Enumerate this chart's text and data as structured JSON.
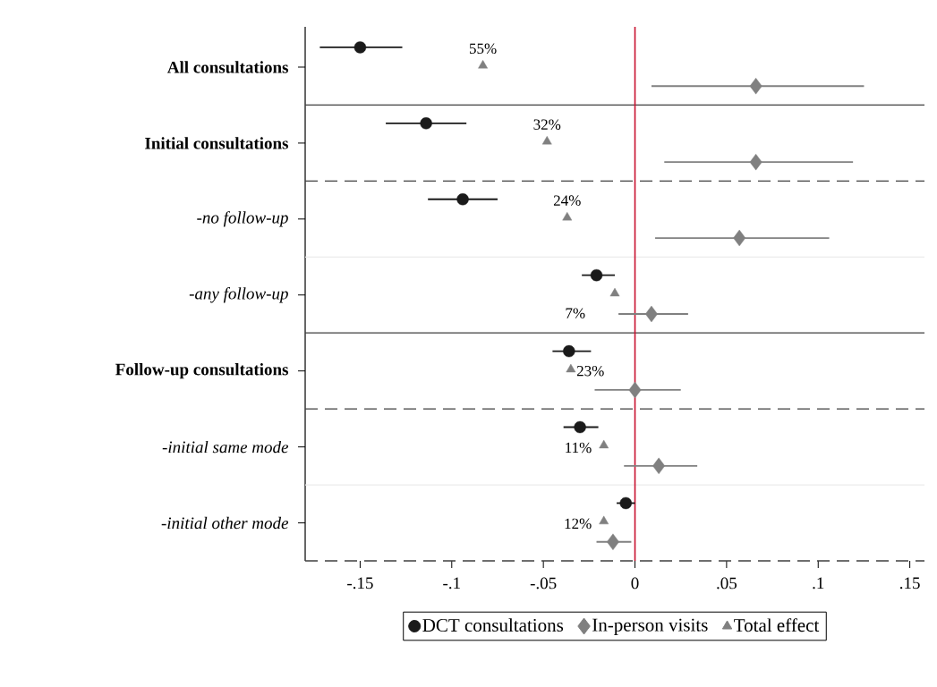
{
  "chart_data": {
    "type": "scatter",
    "orientation": "horizontal",
    "categories": [
      "All consultations",
      "Initial consultations",
      "-no follow-up",
      "-any follow-up",
      "Follow-up consultations",
      "-initial same mode",
      "-initial other mode"
    ],
    "series": [
      {
        "name": "DCT consultations",
        "color": "#1a1a1a",
        "marker": "circle",
        "values": [
          -0.15,
          -0.114,
          -0.094,
          -0.021,
          -0.036,
          -0.03,
          -0.005
        ],
        "errors": [
          [
            -0.172,
            -0.127
          ],
          [
            -0.136,
            -0.092
          ],
          [
            -0.113,
            -0.075
          ],
          [
            -0.029,
            -0.011
          ],
          [
            -0.045,
            -0.024
          ],
          [
            -0.039,
            -0.02
          ],
          [
            -0.01,
            0.0
          ]
        ]
      },
      {
        "name": "In-person visits",
        "color": "#808080",
        "marker": "diamond",
        "values": [
          0.066,
          0.066,
          0.057,
          0.009,
          0.0,
          0.013,
          -0.012
        ],
        "errors": [
          [
            0.009,
            0.125
          ],
          [
            0.016,
            0.119
          ],
          [
            0.011,
            0.106
          ],
          [
            -0.009,
            0.029
          ],
          [
            -0.022,
            0.025
          ],
          [
            -0.006,
            0.034
          ],
          [
            -0.021,
            -0.002
          ]
        ]
      },
      {
        "name": "Total effect",
        "color": "#808080",
        "marker": "triangle",
        "values": [
          -0.083,
          -0.048,
          -0.037,
          -0.011,
          -0.035,
          -0.017,
          -0.017
        ]
      }
    ],
    "annotations": [
      {
        "text": "55%",
        "x": -0.083,
        "y": "All consultations"
      },
      {
        "text": "32%",
        "x": -0.048,
        "y": "Initial consultations"
      },
      {
        "text": "24%",
        "x": -0.037,
        "y": "-no follow-up"
      },
      {
        "text": "7%",
        "x": -0.011,
        "y": "-any follow-up"
      },
      {
        "text": "23%",
        "x": -0.035,
        "y": "Follow-up consultations"
      },
      {
        "text": "11%",
        "x": -0.017,
        "y": "-initial same mode"
      },
      {
        "text": "12%",
        "x": -0.017,
        "y": "-initial other mode"
      }
    ],
    "xlim": [
      -0.18,
      0.158
    ],
    "xticks": [
      {
        "value": -0.15,
        "label": "-.15"
      },
      {
        "value": -0.1,
        "label": "-.1"
      },
      {
        "value": -0.05,
        "label": "-.05"
      },
      {
        "value": 0,
        "label": "0"
      },
      {
        "value": 0.05,
        "label": ".05"
      },
      {
        "value": 0.1,
        "label": ".1"
      },
      {
        "value": 0.15,
        "label": ".15"
      }
    ],
    "ref_lines": [
      {
        "axis": "x",
        "value": 0,
        "color": "#c8102e"
      }
    ],
    "legend": "bottom"
  }
}
